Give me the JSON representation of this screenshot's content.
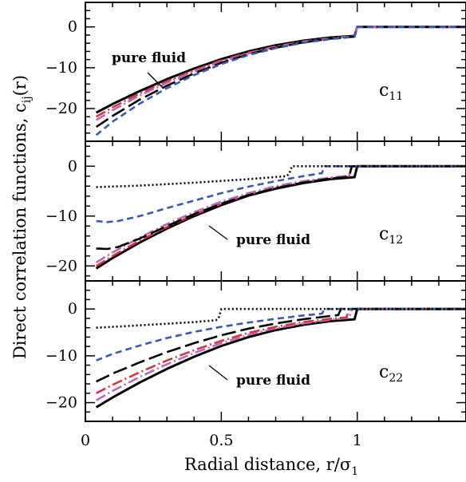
{
  "chart_data": {
    "type": "line",
    "xlabel": "Radial distance, r/σ",
    "xlabel_sub": "1",
    "ylabel": "Direct correlation functions, c",
    "ylabel_sub": "ij",
    "ylabel_suffix": "(r)",
    "xlim": [
      0,
      1.4
    ],
    "x_ticks": [
      "0",
      "0.5",
      "1"
    ],
    "x_tick_values": [
      0,
      0.5,
      1
    ],
    "legend": "none",
    "panels": [
      {
        "label": "c",
        "label_sub": "11",
        "ylim": [
          -28,
          6
        ],
        "y_ticks": [
          "0",
          "−10",
          "−20"
        ],
        "y_tick_values": [
          0,
          -10,
          -20
        ],
        "annotation": "pure fluid",
        "series": [
          {
            "style": "solid",
            "color": "#000000",
            "x": [
              0.04,
              0.1,
              0.2,
              0.3,
              0.4,
              0.5,
              0.6,
              0.7,
              0.8,
              0.9,
              0.99,
              1.0,
              1.01,
              1.4
            ],
            "y": [
              -21,
              -18.9,
              -15.7,
              -12.8,
              -10.2,
              -7.9,
              -6.0,
              -4.5,
              -3.4,
              -2.6,
              -2.2,
              0,
              0,
              0
            ]
          },
          {
            "style": "dashdot",
            "color": "#d6334a",
            "x": [
              0.04,
              0.1,
              0.2,
              0.3,
              0.4,
              0.5,
              0.6,
              0.7,
              0.8,
              0.9,
              0.99,
              1.0,
              1.4
            ],
            "y": [
              -22,
              -19.7,
              -16.3,
              -13.3,
              -10.6,
              -8.2,
              -6.3,
              -4.8,
              -3.6,
              -2.8,
              -2.3,
              0,
              0
            ]
          },
          {
            "style": "dashdot",
            "color": "#b86bb5",
            "x": [
              0.04,
              0.1,
              0.2,
              0.3,
              0.4,
              0.5,
              0.6,
              0.7,
              0.8,
              0.9,
              0.99,
              1.0,
              1.4
            ],
            "y": [
              -22.8,
              -20.4,
              -16.8,
              -13.7,
              -10.9,
              -8.5,
              -6.5,
              -4.9,
              -3.7,
              -2.8,
              -2.3,
              0,
              0
            ]
          },
          {
            "style": "longdash",
            "color": "#000000",
            "x": [
              0.04,
              0.1,
              0.2,
              0.3,
              0.4,
              0.5,
              0.6,
              0.7,
              0.8,
              0.9,
              0.99,
              1.0,
              1.4
            ],
            "y": [
              -24.5,
              -21.8,
              -17.8,
              -14.4,
              -11.4,
              -8.8,
              -6.7,
              -5.1,
              -3.8,
              -2.9,
              -2.4,
              0,
              0
            ]
          },
          {
            "style": "shortdash",
            "color": "#3a5ab0",
            "x": [
              0.04,
              0.1,
              0.2,
              0.3,
              0.4,
              0.5,
              0.6,
              0.7,
              0.8,
              0.9,
              0.99,
              1.0,
              1.4
            ],
            "y": [
              -26.5,
              -23.2,
              -18.8,
              -15.0,
              -11.8,
              -9.1,
              -6.9,
              -5.2,
              -3.9,
              -3.0,
              -2.4,
              0,
              0
            ]
          }
        ]
      },
      {
        "label": "c",
        "label_sub": "12",
        "ylim": [
          -23,
          5
        ],
        "y_ticks": [
          "0",
          "−10",
          "−20"
        ],
        "y_tick_values": [
          0,
          -10,
          -20
        ],
        "annotation": "pure fluid",
        "series": [
          {
            "style": "solid",
            "color": "#000000",
            "x": [
              0.04,
              0.1,
              0.2,
              0.3,
              0.4,
              0.5,
              0.6,
              0.7,
              0.8,
              0.9,
              0.99,
              1.0,
              1.4
            ],
            "y": [
              -20.5,
              -18.4,
              -15.3,
              -12.5,
              -10.0,
              -7.8,
              -5.9,
              -4.5,
              -3.4,
              -2.6,
              -2.2,
              0,
              0
            ]
          },
          {
            "style": "dashdot",
            "color": "#d6334a",
            "x": [
              0.04,
              0.1,
              0.2,
              0.3,
              0.4,
              0.5,
              0.6,
              0.7,
              0.8,
              0.9,
              0.97,
              0.98,
              1.4
            ],
            "y": [
              -20,
              -18,
              -14.9,
              -12.2,
              -9.7,
              -7.5,
              -5.7,
              -4.3,
              -3.2,
              -2.4,
              -2.0,
              0,
              0
            ]
          },
          {
            "style": "dashdot",
            "color": "#b86bb5",
            "x": [
              0.04,
              0.1,
              0.2,
              0.3,
              0.4,
              0.5,
              0.6,
              0.7,
              0.8,
              0.9,
              0.97,
              0.98,
              1.4
            ],
            "y": [
              -19.3,
              -17.3,
              -14.3,
              -11.6,
              -9.2,
              -7.1,
              -5.4,
              -4.0,
              -3.0,
              -2.3,
              -1.9,
              0,
              0
            ]
          },
          {
            "style": "longdash",
            "color": "#000000",
            "x": [
              0.04,
              0.08,
              0.12,
              0.2,
              0.3,
              0.4,
              0.5,
              0.6,
              0.7,
              0.8,
              0.9,
              0.97,
              0.98,
              1.4
            ],
            "y": [
              -16.5,
              -16.6,
              -16.2,
              -14.5,
              -12.0,
              -9.6,
              -7.5,
              -5.8,
              -4.4,
              -3.3,
              -2.5,
              -2.1,
              0,
              0
            ]
          },
          {
            "style": "shortdash",
            "color": "#3a5ab0",
            "x": [
              0.04,
              0.08,
              0.12,
              0.2,
              0.3,
              0.4,
              0.5,
              0.6,
              0.7,
              0.8,
              0.87,
              0.88,
              1.4
            ],
            "y": [
              -11.0,
              -11.2,
              -11.0,
              -10.0,
              -8.4,
              -6.9,
              -5.4,
              -4.1,
              -3.0,
              -2.0,
              -1.4,
              0,
              0
            ]
          },
          {
            "style": "dotted",
            "color": "#000000",
            "x": [
              0.04,
              0.2,
              0.4,
              0.6,
              0.74,
              0.75,
              0.76,
              1.4
            ],
            "y": [
              -4.2,
              -3.9,
              -3.3,
              -2.6,
              -2.0,
              -1.5,
              0,
              0
            ]
          }
        ]
      },
      {
        "label": "c",
        "label_sub": "22",
        "ylim": [
          -24,
          6
        ],
        "y_ticks": [
          "0",
          "−10",
          "−20"
        ],
        "y_tick_values": [
          0,
          -10,
          -20
        ],
        "annotation": "pure fluid",
        "series": [
          {
            "style": "solid",
            "color": "#000000",
            "x": [
              0.04,
              0.1,
              0.2,
              0.3,
              0.4,
              0.5,
              0.6,
              0.7,
              0.8,
              0.9,
              0.99,
              1.0,
              1.4
            ],
            "y": [
              -21,
              -18.9,
              -15.7,
              -12.8,
              -10.2,
              -7.9,
              -6.0,
              -4.5,
              -3.4,
              -2.6,
              -2.2,
              0,
              0
            ]
          },
          {
            "style": "dashdot",
            "color": "#b86bb5",
            "x": [
              0.04,
              0.1,
              0.2,
              0.3,
              0.4,
              0.5,
              0.6,
              0.7,
              0.8,
              0.9,
              0.97,
              0.98,
              1.4
            ],
            "y": [
              -19.5,
              -17.5,
              -14.5,
              -11.8,
              -9.4,
              -7.3,
              -5.5,
              -4.1,
              -3.1,
              -2.3,
              -1.9,
              0,
              0
            ]
          },
          {
            "style": "dashdot",
            "color": "#d6334a",
            "x": [
              0.04,
              0.1,
              0.2,
              0.3,
              0.4,
              0.5,
              0.6,
              0.7,
              0.8,
              0.9,
              0.96,
              0.97,
              1.4
            ],
            "y": [
              -18.0,
              -16.2,
              -13.5,
              -11.0,
              -8.8,
              -6.8,
              -5.1,
              -3.8,
              -2.8,
              -2.1,
              -1.8,
              0,
              0
            ]
          },
          {
            "style": "longdash",
            "color": "#000000",
            "x": [
              0.04,
              0.1,
              0.2,
              0.3,
              0.4,
              0.5,
              0.6,
              0.7,
              0.8,
              0.9,
              0.93,
              0.94,
              1.4
            ],
            "y": [
              -15.5,
              -13.8,
              -11.4,
              -9.2,
              -7.3,
              -5.6,
              -4.2,
              -3.1,
              -2.2,
              -1.5,
              -1.3,
              0,
              0
            ]
          },
          {
            "style": "shortdash",
            "color": "#3a5ab0",
            "x": [
              0.04,
              0.1,
              0.2,
              0.3,
              0.4,
              0.5,
              0.6,
              0.7,
              0.8,
              0.87,
              0.88,
              1.4
            ],
            "y": [
              -11.0,
              -9.6,
              -7.8,
              -6.2,
              -4.9,
              -3.8,
              -2.9,
              -2.1,
              -1.4,
              -1.0,
              0,
              0
            ]
          },
          {
            "style": "dotted",
            "color": "#000000",
            "x": [
              0.04,
              0.2,
              0.4,
              0.48,
              0.49,
              0.5,
              1.4
            ],
            "y": [
              -4.0,
              -3.5,
              -2.8,
              -2.4,
              -2.0,
              0,
              0
            ]
          }
        ]
      }
    ]
  }
}
